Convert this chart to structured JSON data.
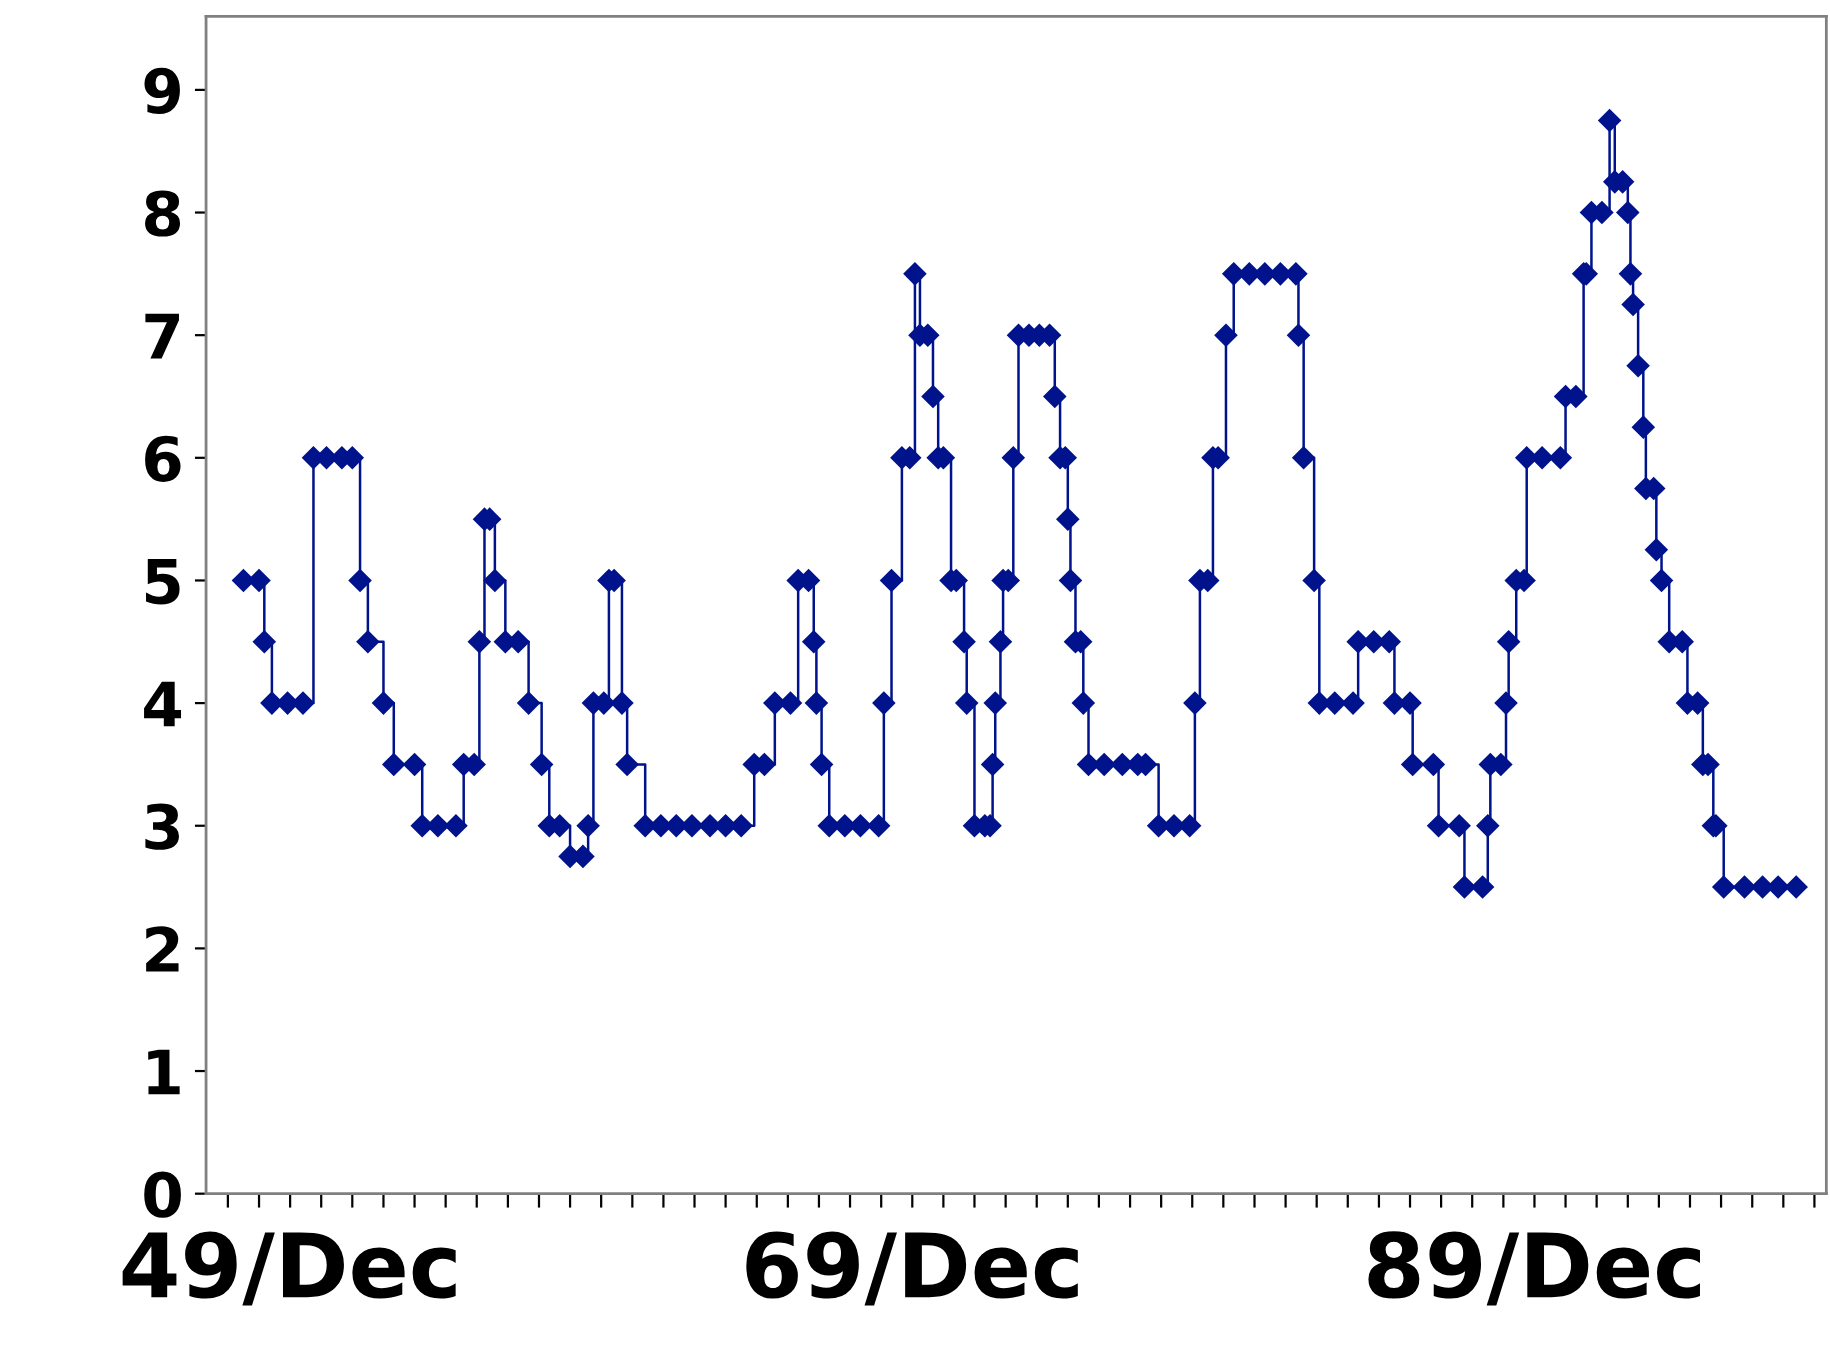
{
  "chart_data": {
    "type": "step",
    "marker": "diamond",
    "line_style": "solid",
    "grid": false,
    "legend": false,
    "xlim": [
      "1947-03-20",
      "1999-04-20"
    ],
    "ylim": [
      0,
      9.6
    ],
    "yticks": [
      0,
      1,
      2,
      3,
      4,
      5,
      6,
      7,
      8,
      9
    ],
    "xticks": [
      {
        "value": "1947-12",
        "label": null
      },
      {
        "value": "1948-12",
        "label": null
      },
      {
        "value": "1949-12",
        "label": "49/Dec"
      },
      {
        "value": "1950-12",
        "label": null
      },
      {
        "value": "1951-12",
        "label": null
      },
      {
        "value": "1952-12",
        "label": null
      },
      {
        "value": "1953-12",
        "label": null
      },
      {
        "value": "1954-12",
        "label": null
      },
      {
        "value": "1955-12",
        "label": null
      },
      {
        "value": "1956-12",
        "label": null
      },
      {
        "value": "1957-12",
        "label": null
      },
      {
        "value": "1958-12",
        "label": null
      },
      {
        "value": "1959-12",
        "label": null
      },
      {
        "value": "1960-12",
        "label": null
      },
      {
        "value": "1961-12",
        "label": null
      },
      {
        "value": "1962-12",
        "label": null
      },
      {
        "value": "1963-12",
        "label": null
      },
      {
        "value": "1964-12",
        "label": null
      },
      {
        "value": "1965-12",
        "label": null
      },
      {
        "value": "1966-12",
        "label": null
      },
      {
        "value": "1967-12",
        "label": null
      },
      {
        "value": "1968-12",
        "label": null
      },
      {
        "value": "1969-12",
        "label": "69/Dec"
      },
      {
        "value": "1970-12",
        "label": null
      },
      {
        "value": "1971-12",
        "label": null
      },
      {
        "value": "1972-12",
        "label": null
      },
      {
        "value": "1973-12",
        "label": null
      },
      {
        "value": "1974-12",
        "label": null
      },
      {
        "value": "1975-12",
        "label": null
      },
      {
        "value": "1976-12",
        "label": null
      },
      {
        "value": "1977-12",
        "label": null
      },
      {
        "value": "1978-12",
        "label": null
      },
      {
        "value": "1979-12",
        "label": null
      },
      {
        "value": "1980-12",
        "label": null
      },
      {
        "value": "1981-12",
        "label": null
      },
      {
        "value": "1982-12",
        "label": null
      },
      {
        "value": "1983-12",
        "label": null
      },
      {
        "value": "1984-12",
        "label": null
      },
      {
        "value": "1985-12",
        "label": null
      },
      {
        "value": "1986-12",
        "label": null
      },
      {
        "value": "1987-12",
        "label": null
      },
      {
        "value": "1988-12",
        "label": null
      },
      {
        "value": "1989-12",
        "label": "89/Dec"
      },
      {
        "value": "1990-12",
        "label": null
      },
      {
        "value": "1991-12",
        "label": null
      },
      {
        "value": "1992-12",
        "label": null
      },
      {
        "value": "1993-12",
        "label": null
      },
      {
        "value": "1994-12",
        "label": null
      },
      {
        "value": "1995-12",
        "label": null
      },
      {
        "value": "1996-12",
        "label": null
      },
      {
        "value": "1997-12",
        "label": null
      },
      {
        "value": "1998-12",
        "label": null
      }
    ],
    "series": [
      {
        "color": "#00138c",
        "x": [
          "1948-06",
          "1948-12",
          "1949-02",
          "1949-05",
          "1949-11",
          "1950-05",
          "1950-09",
          "1951-02",
          "1951-08",
          "1951-12",
          "1952-03",
          "1952-06",
          "1952-12",
          "1953-04",
          "1953-12",
          "1954-03",
          "1954-09",
          "1955-04",
          "1955-07",
          "1955-11",
          "1956-01",
          "1956-03",
          "1956-05",
          "1956-07",
          "1956-11",
          "1957-04",
          "1957-08",
          "1958-01",
          "1958-04",
          "1958-08",
          "1958-12",
          "1959-05",
          "1959-07",
          "1959-09",
          "1960-01",
          "1960-03",
          "1960-05",
          "1960-08",
          "1960-10",
          "1961-05",
          "1961-11",
          "1962-05",
          "1962-11",
          "1963-06",
          "1963-12",
          "1964-06",
          "1964-11",
          "1965-03",
          "1965-07",
          "1966-01",
          "1966-04",
          "1966-08",
          "1966-10",
          "1966-11",
          "1967-01",
          "1967-04",
          "1967-10",
          "1968-04",
          "1968-11",
          "1969-01",
          "1969-04",
          "1969-08",
          "1969-11",
          "1970-01",
          "1970-03",
          "1970-06",
          "1970-08",
          "1970-10",
          "1970-12",
          "1971-03",
          "1971-05",
          "1971-08",
          "1971-09",
          "1971-12",
          "1972-04",
          "1972-06",
          "1972-07",
          "1972-08",
          "1972-10",
          "1972-11",
          "1973-01",
          "1973-03",
          "1973-05",
          "1973-09",
          "1974-01",
          "1974-05",
          "1974-07",
          "1974-09",
          "1974-11",
          "1974-12",
          "1975-01",
          "1975-03",
          "1975-05",
          "1975-06",
          "1975-08",
          "1976-02",
          "1976-09",
          "1977-03",
          "1977-06",
          "1977-11",
          "1978-05",
          "1978-11",
          "1979-01",
          "1979-03",
          "1979-06",
          "1979-08",
          "1979-10",
          "1980-01",
          "1980-04",
          "1980-10",
          "1981-04",
          "1981-10",
          "1982-04",
          "1982-05",
          "1982-07",
          "1982-11",
          "1983-01",
          "1983-07",
          "1984-02",
          "1984-04",
          "1984-10",
          "1985-04",
          "1985-06",
          "1985-12",
          "1986-01",
          "1986-09",
          "1986-11",
          "1987-07",
          "1987-09",
          "1988-04",
          "1988-06",
          "1988-07",
          "1988-11",
          "1989-01",
          "1989-02",
          "1989-05",
          "1989-08",
          "1989-09",
          "1990-03",
          "1990-10",
          "1990-12",
          "1991-04",
          "1991-07",
          "1991-08",
          "1991-10",
          "1992-02",
          "1992-05",
          "1992-07",
          "1992-10",
          "1992-12",
          "1993-01",
          "1993-02",
          "1993-04",
          "1993-06",
          "1993-07",
          "1993-10",
          "1993-11",
          "1994-01",
          "1994-04",
          "1994-09",
          "1994-11",
          "1995-03",
          "1995-05",
          "1995-07",
          "1995-09",
          "1995-10",
          "1996-01",
          "1996-09",
          "1997-04",
          "1997-10",
          "1998-05"
        ],
        "values": [
          5,
          5,
          4.5,
          4,
          4,
          4,
          6,
          6,
          6,
          6,
          5,
          4.5,
          4,
          3.5,
          3.5,
          3,
          3,
          3,
          3.5,
          3.5,
          4.5,
          5.5,
          5.5,
          5,
          4.5,
          4.5,
          4,
          3.5,
          3,
          3,
          2.75,
          2.75,
          3,
          4,
          4,
          5,
          5,
          4,
          3.5,
          3,
          3,
          3,
          3,
          3,
          3,
          3,
          3.5,
          3.5,
          4,
          4,
          5,
          5,
          4.5,
          4,
          3.5,
          3,
          3,
          3,
          3,
          4,
          5,
          6,
          6,
          7.5,
          7,
          7,
          6.5,
          6,
          6,
          5,
          5,
          4.5,
          4,
          3,
          3,
          3,
          3.5,
          4,
          4.5,
          5,
          5,
          6,
          7,
          7,
          7,
          7,
          6.5,
          6,
          6,
          5.5,
          5,
          4.5,
          4.5,
          4,
          3.5,
          3.5,
          3.5,
          3.5,
          3.5,
          3,
          3,
          3,
          4,
          5,
          5,
          6,
          6,
          7,
          7.5,
          7.5,
          7.5,
          7.5,
          7.5,
          7,
          6,
          5,
          4,
          4,
          4,
          4.5,
          4.5,
          4.5,
          4,
          4,
          3.5,
          3.5,
          3,
          3,
          2.5,
          2.5,
          3,
          3.5,
          3.5,
          4,
          4.5,
          5,
          5,
          6,
          6,
          6,
          6.5,
          6.5,
          7.5,
          7.5,
          8,
          8,
          8.75,
          8.25,
          8.25,
          8,
          7.5,
          7.25,
          6.75,
          6.25,
          5.75,
          5.75,
          5.25,
          5,
          4.5,
          4.5,
          4,
          4,
          3.5,
          3.5,
          3,
          3,
          2.5,
          2.5,
          2.5,
          2.5,
          2.5
        ]
      }
    ]
  }
}
